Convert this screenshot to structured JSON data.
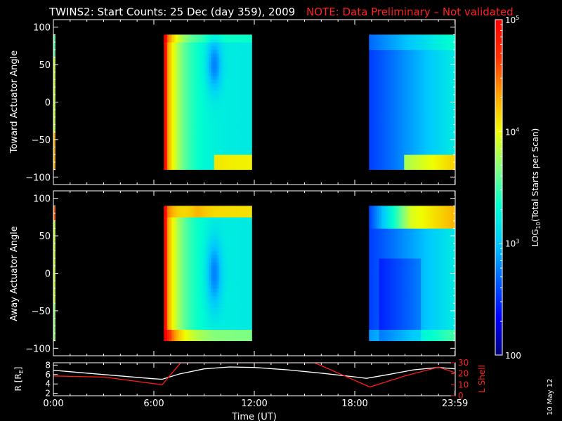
{
  "header": {
    "title": "TWINS2: Start Counts: 25 Dec (day 359), 2009",
    "note": "NOTE: Data Preliminary – Not validated"
  },
  "side_date": "10 May 12",
  "chart_data": [
    {
      "type": "heatmap",
      "ylabel": "Toward Actuator Angle",
      "ylim": [
        -110,
        110
      ],
      "y_ticks": [
        "100",
        "50",
        "0",
        "−50",
        "−100"
      ],
      "y_tick_values": [
        100,
        50,
        0,
        -50,
        -100
      ],
      "data_range_deg": [
        -90,
        90
      ],
      "x_unit": "hours UT",
      "data_intervals_hours": [
        [
          0.0,
          0.1
        ],
        [
          6.6,
          11.85
        ],
        [
          18.85,
          24.0
        ]
      ]
    },
    {
      "type": "heatmap",
      "ylabel": "Away Actuator Angle",
      "ylim": [
        -110,
        110
      ],
      "y_ticks": [
        "100",
        "50",
        "0",
        "−50",
        "−100"
      ],
      "y_tick_values": [
        100,
        50,
        0,
        -50,
        -100
      ],
      "data_range_deg": [
        -90,
        90
      ],
      "x_unit": "hours UT",
      "data_intervals_hours": [
        [
          0.0,
          0.1
        ],
        [
          6.6,
          11.85
        ],
        [
          18.85,
          24.0
        ]
      ]
    },
    {
      "type": "line",
      "ylabel_left": "R [R",
      "ylabel_left_sub": "E",
      "ylabel_left_end": "]",
      "ylabel_right": "L Shell",
      "left_ylim": [
        1.5,
        8.5
      ],
      "left_ticks": [
        "8",
        "6",
        "4",
        "2"
      ],
      "left_tick_values": [
        8,
        6,
        4,
        2
      ],
      "right_ylim": [
        0,
        30
      ],
      "right_ticks": [
        "30",
        "20",
        "10",
        "0"
      ],
      "right_tick_values": [
        30,
        20,
        10,
        0
      ],
      "xlabel": "Time (UT)",
      "x_ticks": [
        "0:00",
        "6:00",
        "12:00",
        "18:00",
        "23:59"
      ],
      "x_tick_values": [
        0,
        6,
        12,
        18,
        23.983
      ],
      "series": [
        {
          "axis": "left",
          "color": "#ffffff",
          "x": [
            0,
            2,
            4,
            6,
            6.5,
            7.5,
            9,
            10.5,
            12,
            14,
            16,
            18,
            18.7,
            20,
            21.5,
            23,
            24
          ],
          "y": [
            6.9,
            6.3,
            5.7,
            5.1,
            5.0,
            6.1,
            7.2,
            7.6,
            7.5,
            7.0,
            6.3,
            5.5,
            5.2,
            6.0,
            7.0,
            7.5,
            7.2
          ]
        },
        {
          "axis": "right",
          "color": "#ff1a1a",
          "x": [
            0,
            3,
            6.5,
            7.6,
            15.6,
            18.9,
            21,
            23,
            24
          ],
          "y": [
            18,
            17,
            10,
            30,
            30,
            8,
            18,
            26,
            21
          ]
        }
      ]
    }
  ],
  "colorbar": {
    "label_prefix": "LOG",
    "label_sub": "10",
    "label_suffix": "(Total Starts per Scan)",
    "min": 100,
    "max": 100000,
    "scale": "log",
    "ticks": [
      {
        "base": "10",
        "exp": "5",
        "value": 100000
      },
      {
        "base": "10",
        "exp": "4",
        "value": 10000
      },
      {
        "base": "10",
        "exp": "3",
        "value": 1000
      },
      {
        "text": "100",
        "value": 100
      }
    ],
    "stops": [
      "#00007a",
      "#0000ff",
      "#0060ff",
      "#00c8ff",
      "#00ffd0",
      "#80ff80",
      "#f0ff00",
      "#ffa000",
      "#ff3000",
      "#ff0000"
    ]
  },
  "colors": {
    "title": "#ffffff",
    "note": "#ff2020",
    "axis": "#ffffff",
    "r_line": "#ffffff",
    "l_line": "#ff1a1a"
  }
}
